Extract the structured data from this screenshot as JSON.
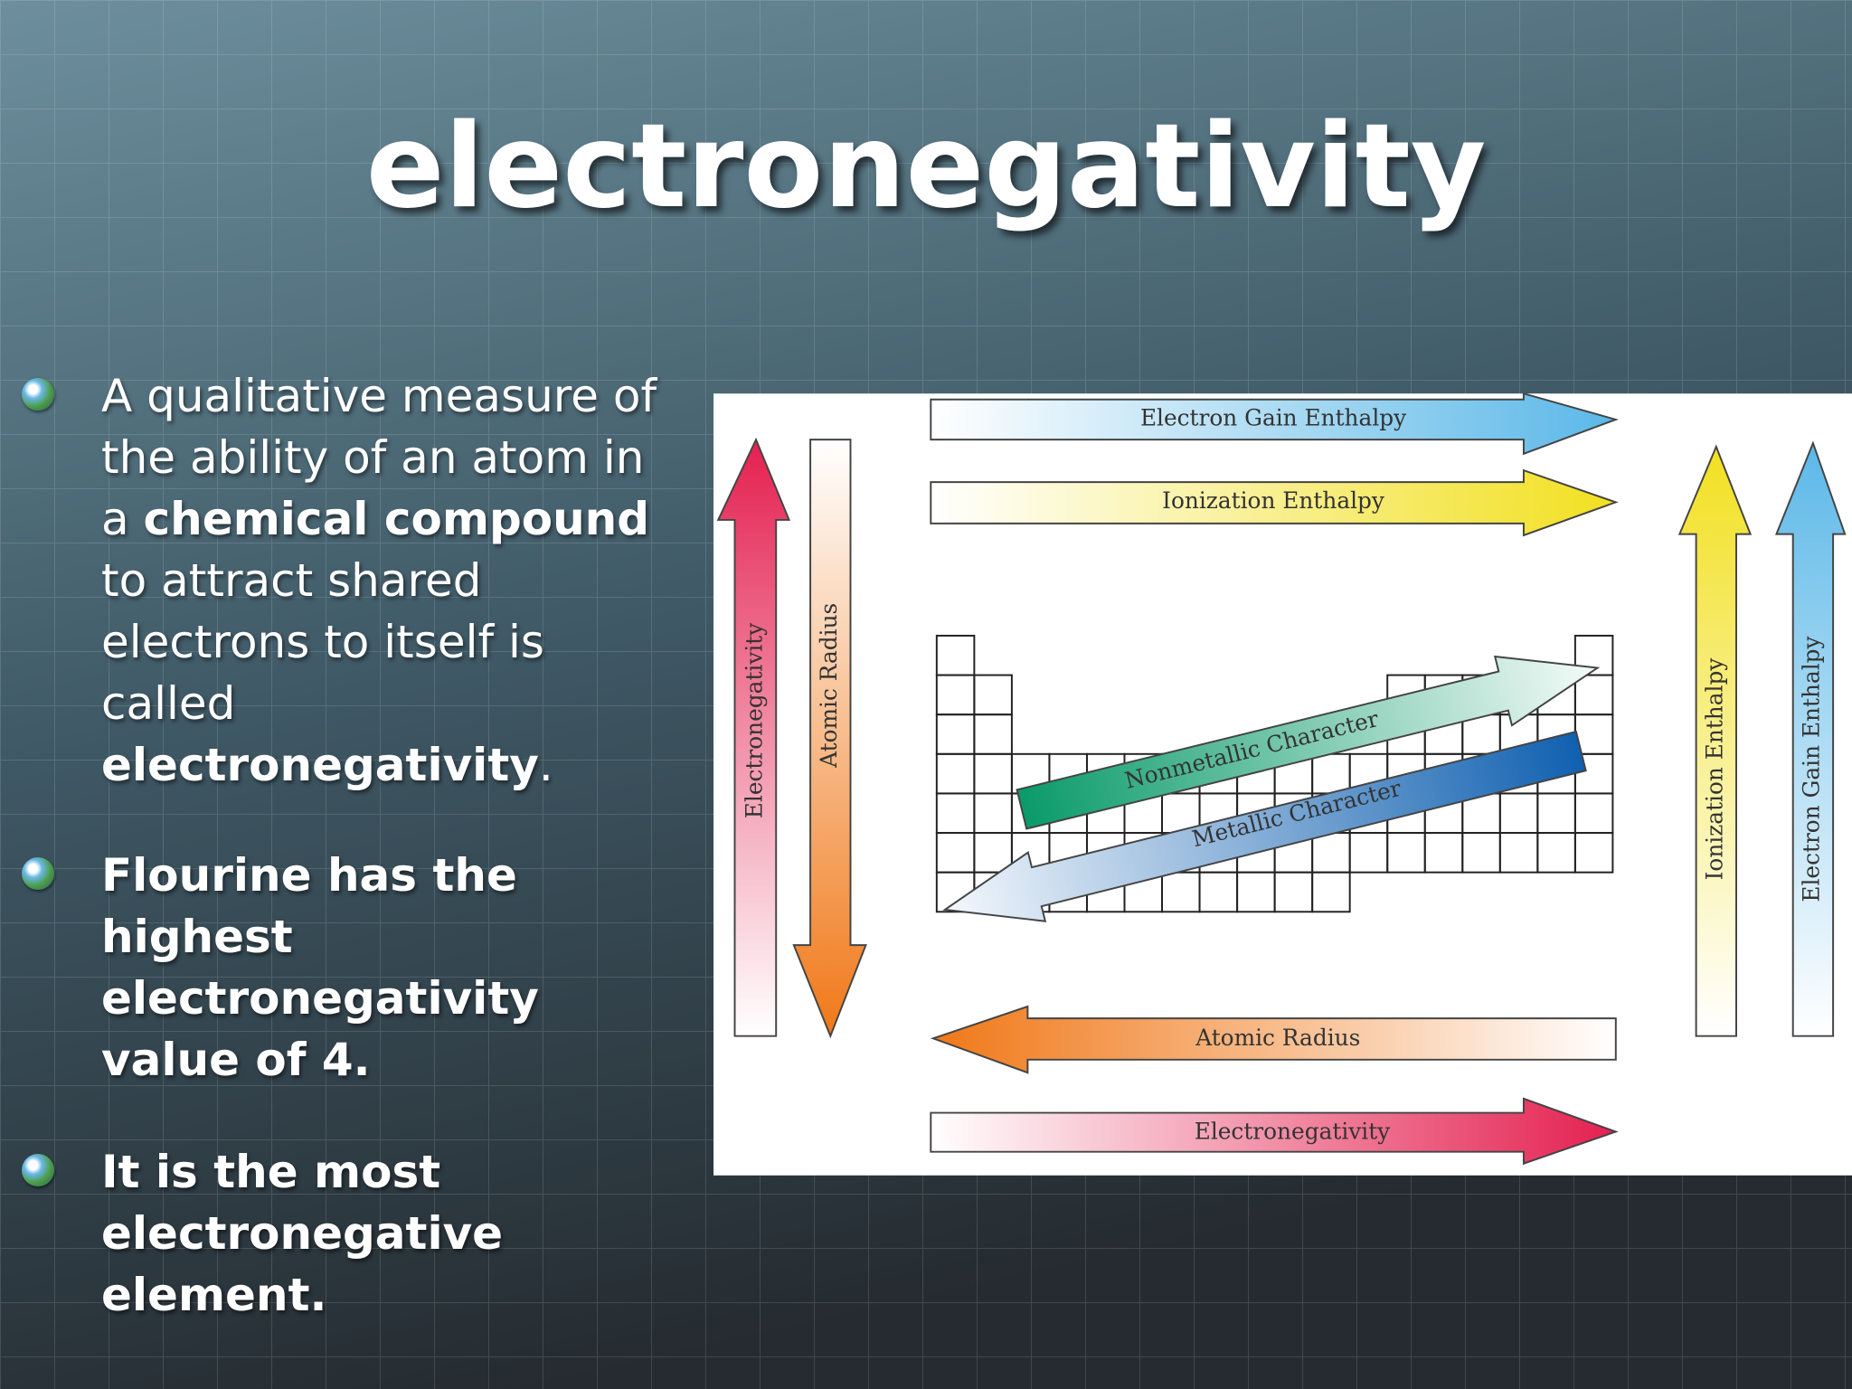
{
  "title": "electronegativity",
  "bullets": [
    {
      "segments": [
        {
          "text": "A qualitative measure of the ability of an atom in a ",
          "bold": false
        },
        {
          "text": "chemical compound",
          "bold": true
        },
        {
          "text": " to attract shared electrons to itself is called ",
          "bold": false
        },
        {
          "text": "electronegativity",
          "bold": true
        },
        {
          "text": ".",
          "bold": false
        }
      ]
    },
    {
      "segments": [
        {
          "text": "Flourine has the highest electronegativity value of 4.",
          "bold": true
        }
      ]
    },
    {
      "segments": [
        {
          "text": "It is the most electronegative element.",
          "bold": true
        }
      ]
    }
  ],
  "diagram": {
    "top_arrows": [
      "Electron Gain Enthalpy",
      "Ionization Enthalpy"
    ],
    "left_arrows": [
      "Electronegativity",
      "Atomic Radius"
    ],
    "right_arrows": [
      "Ionization Enthalpy",
      "Electron Gain Enthalpy"
    ],
    "bottom_arrows": [
      "Atomic Radius",
      "Electronegativity"
    ],
    "diagonal_arrows": [
      "Nonmetallic Character",
      "Metallic Character"
    ]
  }
}
